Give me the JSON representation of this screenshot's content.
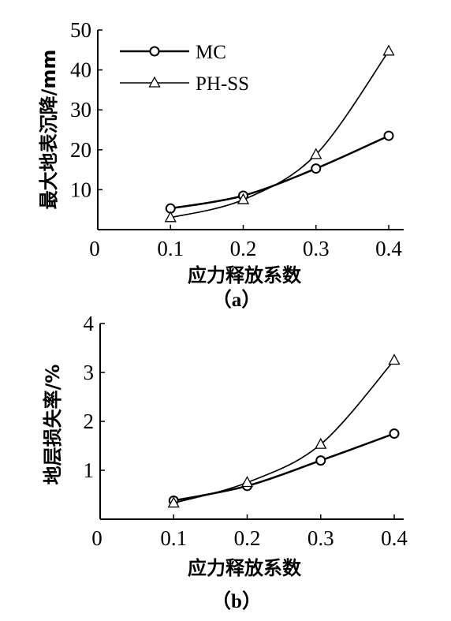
{
  "chart_data": [
    {
      "type": "line",
      "caption": "（a）",
      "xlabel": "应力释放系数",
      "ylabel": "最大地表沉降/mm",
      "x": [
        0.1,
        0.2,
        0.3,
        0.4
      ],
      "xticks": [
        "0",
        "0.1",
        "0.2",
        "0.3",
        "0.4"
      ],
      "yticks": [
        "10",
        "20",
        "30",
        "40",
        "50"
      ],
      "xlim": [
        0,
        0.4
      ],
      "ylim": [
        0,
        50
      ],
      "legend": "top-left",
      "series": [
        {
          "name": "MC",
          "marker": "circle",
          "values": [
            5.3,
            8.5,
            15.3,
            23.5
          ]
        },
        {
          "name": "PH-SS",
          "marker": "triangle",
          "values": [
            3.0,
            7.5,
            18.8,
            44.7
          ]
        }
      ]
    },
    {
      "type": "line",
      "caption": "（b）",
      "xlabel": "应力释放系数",
      "ylabel": "地层损失率/%",
      "x": [
        0.1,
        0.2,
        0.3,
        0.4
      ],
      "xticks": [
        "0",
        "0.1",
        "0.2",
        "0.3",
        "0.4"
      ],
      "yticks": [
        "1",
        "2",
        "3",
        "4"
      ],
      "xlim": [
        0,
        0.4
      ],
      "ylim": [
        0,
        4
      ],
      "series": [
        {
          "name": "MC",
          "marker": "circle",
          "values": [
            0.38,
            0.68,
            1.2,
            1.75
          ]
        },
        {
          "name": "PH-SS",
          "marker": "triangle",
          "values": [
            0.33,
            0.75,
            1.53,
            3.25
          ]
        }
      ]
    }
  ]
}
